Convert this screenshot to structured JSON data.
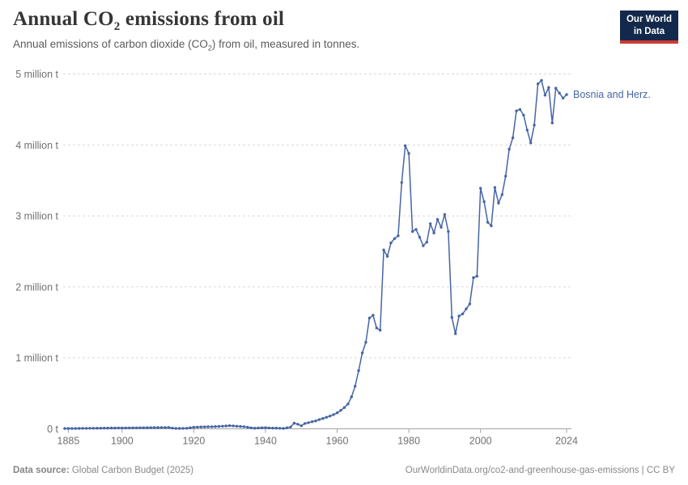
{
  "header": {
    "title_pre": "Annual CO",
    "title_sub": "2",
    "title_post": " emissions from oil",
    "subtitle_pre": "Annual emissions of carbon dioxide (CO",
    "subtitle_sub": "2",
    "subtitle_post": ") from oil, measured in tonnes."
  },
  "logo": {
    "line1": "Our World",
    "line2": "in Data"
  },
  "footer": {
    "source_label": "Data source:",
    "source_value": " Global Carbon Budget (2025)",
    "credit": "OurWorldinData.org/co2-and-greenhouse-gas-emissions | CC BY"
  },
  "chart_data": {
    "type": "line",
    "entity": "Bosnia and Herz.",
    "unit": "tonnes",
    "value_unit_scale": "million tonnes",
    "line_color": "#4665a5",
    "grid_color": "#d9d9d9",
    "axis_color": "#a3a3a3",
    "tick_text_color": "#707070",
    "xlim": [
      1884,
      2024
    ],
    "ylim": [
      0,
      5
    ],
    "grid": "dashed-horizontal",
    "legend_position": "end-of-line-label",
    "x_ticks": [
      1885,
      1900,
      1920,
      1940,
      1960,
      1980,
      2000,
      2024
    ],
    "y_ticks": [
      {
        "v": 0,
        "label": "0 t"
      },
      {
        "v": 1,
        "label": "1 million t"
      },
      {
        "v": 2,
        "label": "2 million t"
      },
      {
        "v": 3,
        "label": "3 million t"
      },
      {
        "v": 4,
        "label": "4 million t"
      },
      {
        "v": 5,
        "label": "5 million t"
      }
    ],
    "points": [
      [
        1884,
        0.004
      ],
      [
        1885,
        0.004
      ],
      [
        1886,
        0.005
      ],
      [
        1887,
        0.005
      ],
      [
        1888,
        0.006
      ],
      [
        1889,
        0.007
      ],
      [
        1890,
        0.007
      ],
      [
        1891,
        0.008
      ],
      [
        1892,
        0.008
      ],
      [
        1893,
        0.009
      ],
      [
        1894,
        0.009
      ],
      [
        1895,
        0.01
      ],
      [
        1896,
        0.01
      ],
      [
        1897,
        0.011
      ],
      [
        1898,
        0.011
      ],
      [
        1899,
        0.012
      ],
      [
        1900,
        0.012
      ],
      [
        1901,
        0.013
      ],
      [
        1902,
        0.013
      ],
      [
        1903,
        0.014
      ],
      [
        1904,
        0.014
      ],
      [
        1905,
        0.015
      ],
      [
        1906,
        0.015
      ],
      [
        1907,
        0.016
      ],
      [
        1908,
        0.016
      ],
      [
        1909,
        0.017
      ],
      [
        1910,
        0.017
      ],
      [
        1911,
        0.018
      ],
      [
        1912,
        0.018
      ],
      [
        1913,
        0.019
      ],
      [
        1914,
        0.01
      ],
      [
        1915,
        0.006
      ],
      [
        1916,
        0.006
      ],
      [
        1917,
        0.007
      ],
      [
        1918,
        0.008
      ],
      [
        1919,
        0.015
      ],
      [
        1920,
        0.022
      ],
      [
        1921,
        0.024
      ],
      [
        1922,
        0.026
      ],
      [
        1923,
        0.027
      ],
      [
        1924,
        0.029
      ],
      [
        1925,
        0.03
      ],
      [
        1926,
        0.032
      ],
      [
        1927,
        0.034
      ],
      [
        1928,
        0.037
      ],
      [
        1929,
        0.04
      ],
      [
        1930,
        0.044
      ],
      [
        1931,
        0.041
      ],
      [
        1932,
        0.037
      ],
      [
        1933,
        0.033
      ],
      [
        1934,
        0.03
      ],
      [
        1935,
        0.022
      ],
      [
        1936,
        0.014
      ],
      [
        1937,
        0.009
      ],
      [
        1938,
        0.012
      ],
      [
        1939,
        0.015
      ],
      [
        1940,
        0.016
      ],
      [
        1941,
        0.012
      ],
      [
        1942,
        0.01
      ],
      [
        1943,
        0.01
      ],
      [
        1944,
        0.008
      ],
      [
        1945,
        0.006
      ],
      [
        1946,
        0.015
      ],
      [
        1947,
        0.025
      ],
      [
        1948,
        0.08
      ],
      [
        1949,
        0.065
      ],
      [
        1950,
        0.042
      ],
      [
        1951,
        0.075
      ],
      [
        1952,
        0.086
      ],
      [
        1953,
        0.1
      ],
      [
        1954,
        0.112
      ],
      [
        1955,
        0.13
      ],
      [
        1956,
        0.146
      ],
      [
        1957,
        0.163
      ],
      [
        1958,
        0.18
      ],
      [
        1959,
        0.2
      ],
      [
        1960,
        0.226
      ],
      [
        1961,
        0.26
      ],
      [
        1962,
        0.3
      ],
      [
        1963,
        0.35
      ],
      [
        1964,
        0.45
      ],
      [
        1965,
        0.6
      ],
      [
        1966,
        0.82
      ],
      [
        1967,
        1.07
      ],
      [
        1968,
        1.22
      ],
      [
        1969,
        1.56
      ],
      [
        1970,
        1.6
      ],
      [
        1971,
        1.42
      ],
      [
        1972,
        1.39
      ],
      [
        1973,
        2.52
      ],
      [
        1974,
        2.43
      ],
      [
        1975,
        2.62
      ],
      [
        1976,
        2.68
      ],
      [
        1977,
        2.72
      ],
      [
        1978,
        3.47
      ],
      [
        1979,
        3.99
      ],
      [
        1980,
        3.88
      ],
      [
        1981,
        2.78
      ],
      [
        1982,
        2.81
      ],
      [
        1983,
        2.7
      ],
      [
        1984,
        2.58
      ],
      [
        1985,
        2.63
      ],
      [
        1986,
        2.89
      ],
      [
        1987,
        2.76
      ],
      [
        1988,
        2.95
      ],
      [
        1989,
        2.84
      ],
      [
        1990,
        3.02
      ],
      [
        1991,
        2.78
      ],
      [
        1992,
        1.57
      ],
      [
        1993,
        1.34
      ],
      [
        1994,
        1.59
      ],
      [
        1995,
        1.62
      ],
      [
        1996,
        1.69
      ],
      [
        1997,
        1.76
      ],
      [
        1998,
        2.13
      ],
      [
        1999,
        2.15
      ],
      [
        2000,
        3.39
      ],
      [
        2001,
        3.2
      ],
      [
        2002,
        2.91
      ],
      [
        2003,
        2.86
      ],
      [
        2004,
        3.4
      ],
      [
        2005,
        3.18
      ],
      [
        2006,
        3.3
      ],
      [
        2007,
        3.56
      ],
      [
        2008,
        3.94
      ],
      [
        2009,
        4.1
      ],
      [
        2010,
        4.48
      ],
      [
        2011,
        4.5
      ],
      [
        2012,
        4.42
      ],
      [
        2013,
        4.21
      ],
      [
        2014,
        4.03
      ],
      [
        2015,
        4.28
      ],
      [
        2016,
        4.86
      ],
      [
        2017,
        4.91
      ],
      [
        2018,
        4.7
      ],
      [
        2019,
        4.81
      ],
      [
        2020,
        4.31
      ],
      [
        2021,
        4.8
      ],
      [
        2022,
        4.73
      ],
      [
        2023,
        4.66
      ],
      [
        2024,
        4.71
      ]
    ],
    "title": "Annual CO2 emissions from oil",
    "xlabel": "",
    "ylabel": "tonnes"
  }
}
